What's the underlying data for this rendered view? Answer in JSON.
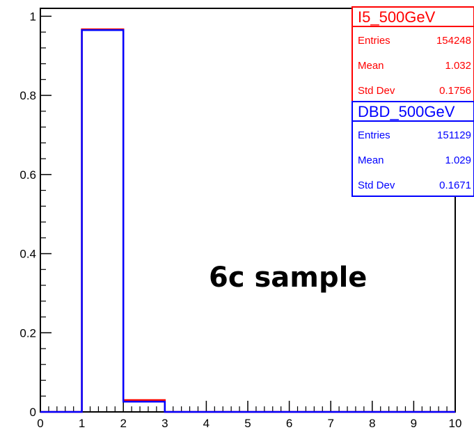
{
  "chart_data": {
    "type": "bar",
    "xlim": [
      0,
      10
    ],
    "ylim": [
      0,
      1.02
    ],
    "xticks": [
      "0",
      "1",
      "2",
      "3",
      "4",
      "5",
      "6",
      "7",
      "8",
      "9",
      "10"
    ],
    "yticks": [
      {
        "value": 0,
        "label": "0"
      },
      {
        "value": 0.2,
        "label": "0.2"
      },
      {
        "value": 0.4,
        "label": "0.4"
      },
      {
        "value": 0.6,
        "label": "0.6"
      },
      {
        "value": 0.8,
        "label": "0.8"
      },
      {
        "value": 1,
        "label": "1"
      }
    ],
    "bin_edges": [
      1,
      2,
      3
    ],
    "series": [
      {
        "name": "I5_500GeV",
        "color": "#ff0000",
        "values": [
          0.967,
          0.03
        ]
      },
      {
        "name": "DBD_500GeV",
        "color": "#0000ff",
        "values": [
          0.965,
          0.026
        ]
      }
    ],
    "annotation": "6c sample",
    "stats_boxes": [
      {
        "title": "I5_500GeV",
        "color": "#ff0000",
        "rows": [
          {
            "label": "Entries",
            "value": "154248"
          },
          {
            "label": "Mean",
            "value": "1.032"
          },
          {
            "label": "Std Dev",
            "value": "0.1756"
          }
        ]
      },
      {
        "title": "DBD_500GeV",
        "color": "#0000ff",
        "rows": [
          {
            "label": "Entries",
            "value": "151129"
          },
          {
            "label": "Mean",
            "value": "1.029"
          },
          {
            "label": "Std Dev",
            "value": "0.1671"
          }
        ]
      }
    ]
  }
}
